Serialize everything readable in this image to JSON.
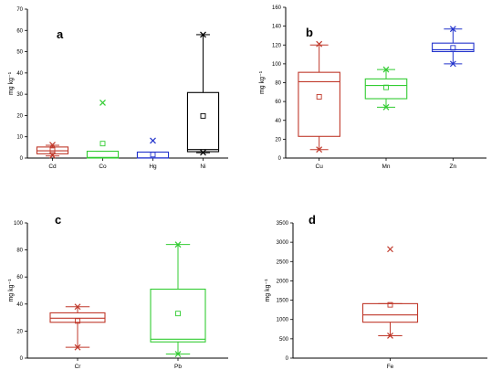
{
  "chart_data": [
    {
      "type": "box",
      "panel_label": "a",
      "ylabel": "mg kg⁻¹",
      "ylim": [
        0,
        70
      ],
      "yticks": [
        0,
        10,
        20,
        30,
        40,
        50,
        60,
        70
      ],
      "categories": [
        "Cd",
        "Co",
        "Hg",
        "Ni"
      ],
      "colors": [
        "#c0392b",
        "#33cc33",
        "#2233cc",
        "#000000"
      ],
      "boxes": [
        {
          "q1": 2.0,
          "median": 3.4,
          "q3": 5.2,
          "mean": 3.7,
          "min": 1.0,
          "max": 6.0,
          "outliers": [
            6.2,
            1.2
          ]
        },
        {
          "q1": 0.0,
          "median": 0.3,
          "q3": 3.2,
          "mean": 6.8,
          "min": 0.0,
          "max": 3.2,
          "outliers": [
            26.0
          ]
        },
        {
          "q1": 0.0,
          "median": 0.1,
          "q3": 2.8,
          "mean": 1.6,
          "min": 0.0,
          "max": 2.8,
          "outliers": [
            8.2
          ]
        },
        {
          "q1": 3.0,
          "median": 4.0,
          "q3": 30.8,
          "mean": 19.8,
          "min": 2.5,
          "max": 58.0,
          "outliers": [
            58.0,
            2.6
          ]
        }
      ]
    },
    {
      "type": "box",
      "panel_label": "b",
      "ylabel": "mg kg⁻¹",
      "ylim": [
        0,
        160
      ],
      "yticks": [
        0,
        20,
        40,
        60,
        80,
        100,
        120,
        140,
        160
      ],
      "categories": [
        "Cu",
        "Mn",
        "Zn"
      ],
      "colors": [
        "#c0392b",
        "#33cc33",
        "#2233cc"
      ],
      "boxes": [
        {
          "q1": 23,
          "median": 81,
          "q3": 91,
          "mean": 65,
          "min": 9,
          "max": 120,
          "outliers": [
            121,
            9
          ]
        },
        {
          "q1": 63,
          "median": 77,
          "q3": 84,
          "mean": 75,
          "min": 54,
          "max": 94,
          "outliers": [
            94,
            54
          ]
        },
        {
          "q1": 113,
          "median": 115,
          "q3": 122,
          "mean": 117,
          "min": 100,
          "max": 137,
          "outliers": [
            137,
            100
          ]
        }
      ]
    },
    {
      "type": "box",
      "panel_label": "c",
      "ylabel": "mg kg⁻¹",
      "ylim": [
        0,
        100
      ],
      "yticks": [
        0,
        20,
        40,
        60,
        80,
        100
      ],
      "categories": [
        "Cr",
        "Pb"
      ],
      "colors": [
        "#c0392b",
        "#33cc33"
      ],
      "boxes": [
        {
          "q1": 26.5,
          "median": 29.5,
          "q3": 33.5,
          "mean": 27.5,
          "min": 8,
          "max": 38,
          "outliers": [
            38,
            8
          ]
        },
        {
          "q1": 12,
          "median": 14,
          "q3": 51,
          "mean": 33,
          "min": 3,
          "max": 84,
          "outliers": [
            84,
            3
          ]
        }
      ]
    },
    {
      "type": "box",
      "panel_label": "d",
      "ylabel": "mg kg⁻¹",
      "ylim": [
        0,
        3500
      ],
      "yticks": [
        0,
        500,
        1000,
        1500,
        2000,
        2500,
        3000,
        3500
      ],
      "categories": [
        "Fe"
      ],
      "colors": [
        "#c0392b"
      ],
      "boxes": [
        {
          "q1": 930,
          "median": 1120,
          "q3": 1410,
          "mean": 1380,
          "min": 580,
          "max": 1410,
          "outliers": [
            2820,
            580
          ]
        }
      ]
    }
  ]
}
